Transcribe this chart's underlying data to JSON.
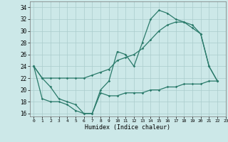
{
  "xlabel": "Humidex (Indice chaleur)",
  "xlim": [
    -0.5,
    23
  ],
  "ylim": [
    15.5,
    35
  ],
  "yticks": [
    16,
    18,
    20,
    22,
    24,
    26,
    28,
    30,
    32,
    34
  ],
  "xticks": [
    0,
    1,
    2,
    3,
    4,
    5,
    6,
    7,
    8,
    9,
    10,
    11,
    12,
    13,
    14,
    15,
    16,
    17,
    18,
    19,
    20,
    21,
    22,
    23
  ],
  "bg_color": "#cce8e8",
  "grid_color": "#aacccc",
  "line_color": "#2a7a6a",
  "line1_x": [
    0,
    1,
    2,
    3,
    4,
    5,
    6,
    7,
    8,
    9,
    10,
    11,
    12,
    13,
    14,
    15,
    16,
    17,
    18,
    19,
    20,
    21,
    22
  ],
  "line1_y": [
    24,
    22,
    20.5,
    18.5,
    18,
    17.5,
    16,
    16,
    20,
    21.5,
    26.5,
    26,
    24,
    28,
    32,
    33.5,
    33,
    32,
    31.5,
    31,
    29.5,
    24,
    21.5
  ],
  "line2_x": [
    0,
    1,
    2,
    3,
    4,
    5,
    6,
    7,
    8,
    9,
    10,
    11,
    12,
    13,
    14,
    15,
    16,
    17,
    18,
    19,
    20,
    21,
    22
  ],
  "line2_y": [
    24,
    22,
    22,
    22,
    22,
    22,
    22,
    22.5,
    23,
    23.5,
    25,
    25.5,
    26,
    27,
    28.5,
    30,
    31,
    31.5,
    31.5,
    30.5,
    29.5,
    24,
    21.5
  ],
  "line3_x": [
    0,
    1,
    2,
    3,
    4,
    5,
    6,
    7,
    8,
    9,
    10,
    11,
    12,
    13,
    14,
    15,
    16,
    17,
    18,
    19,
    20,
    21,
    22
  ],
  "line3_y": [
    24,
    18.5,
    18,
    18,
    17.5,
    16.5,
    16,
    16,
    19.5,
    19,
    19,
    19.5,
    19.5,
    19.5,
    20,
    20,
    20.5,
    20.5,
    21,
    21,
    21,
    21.5,
    21.5
  ]
}
